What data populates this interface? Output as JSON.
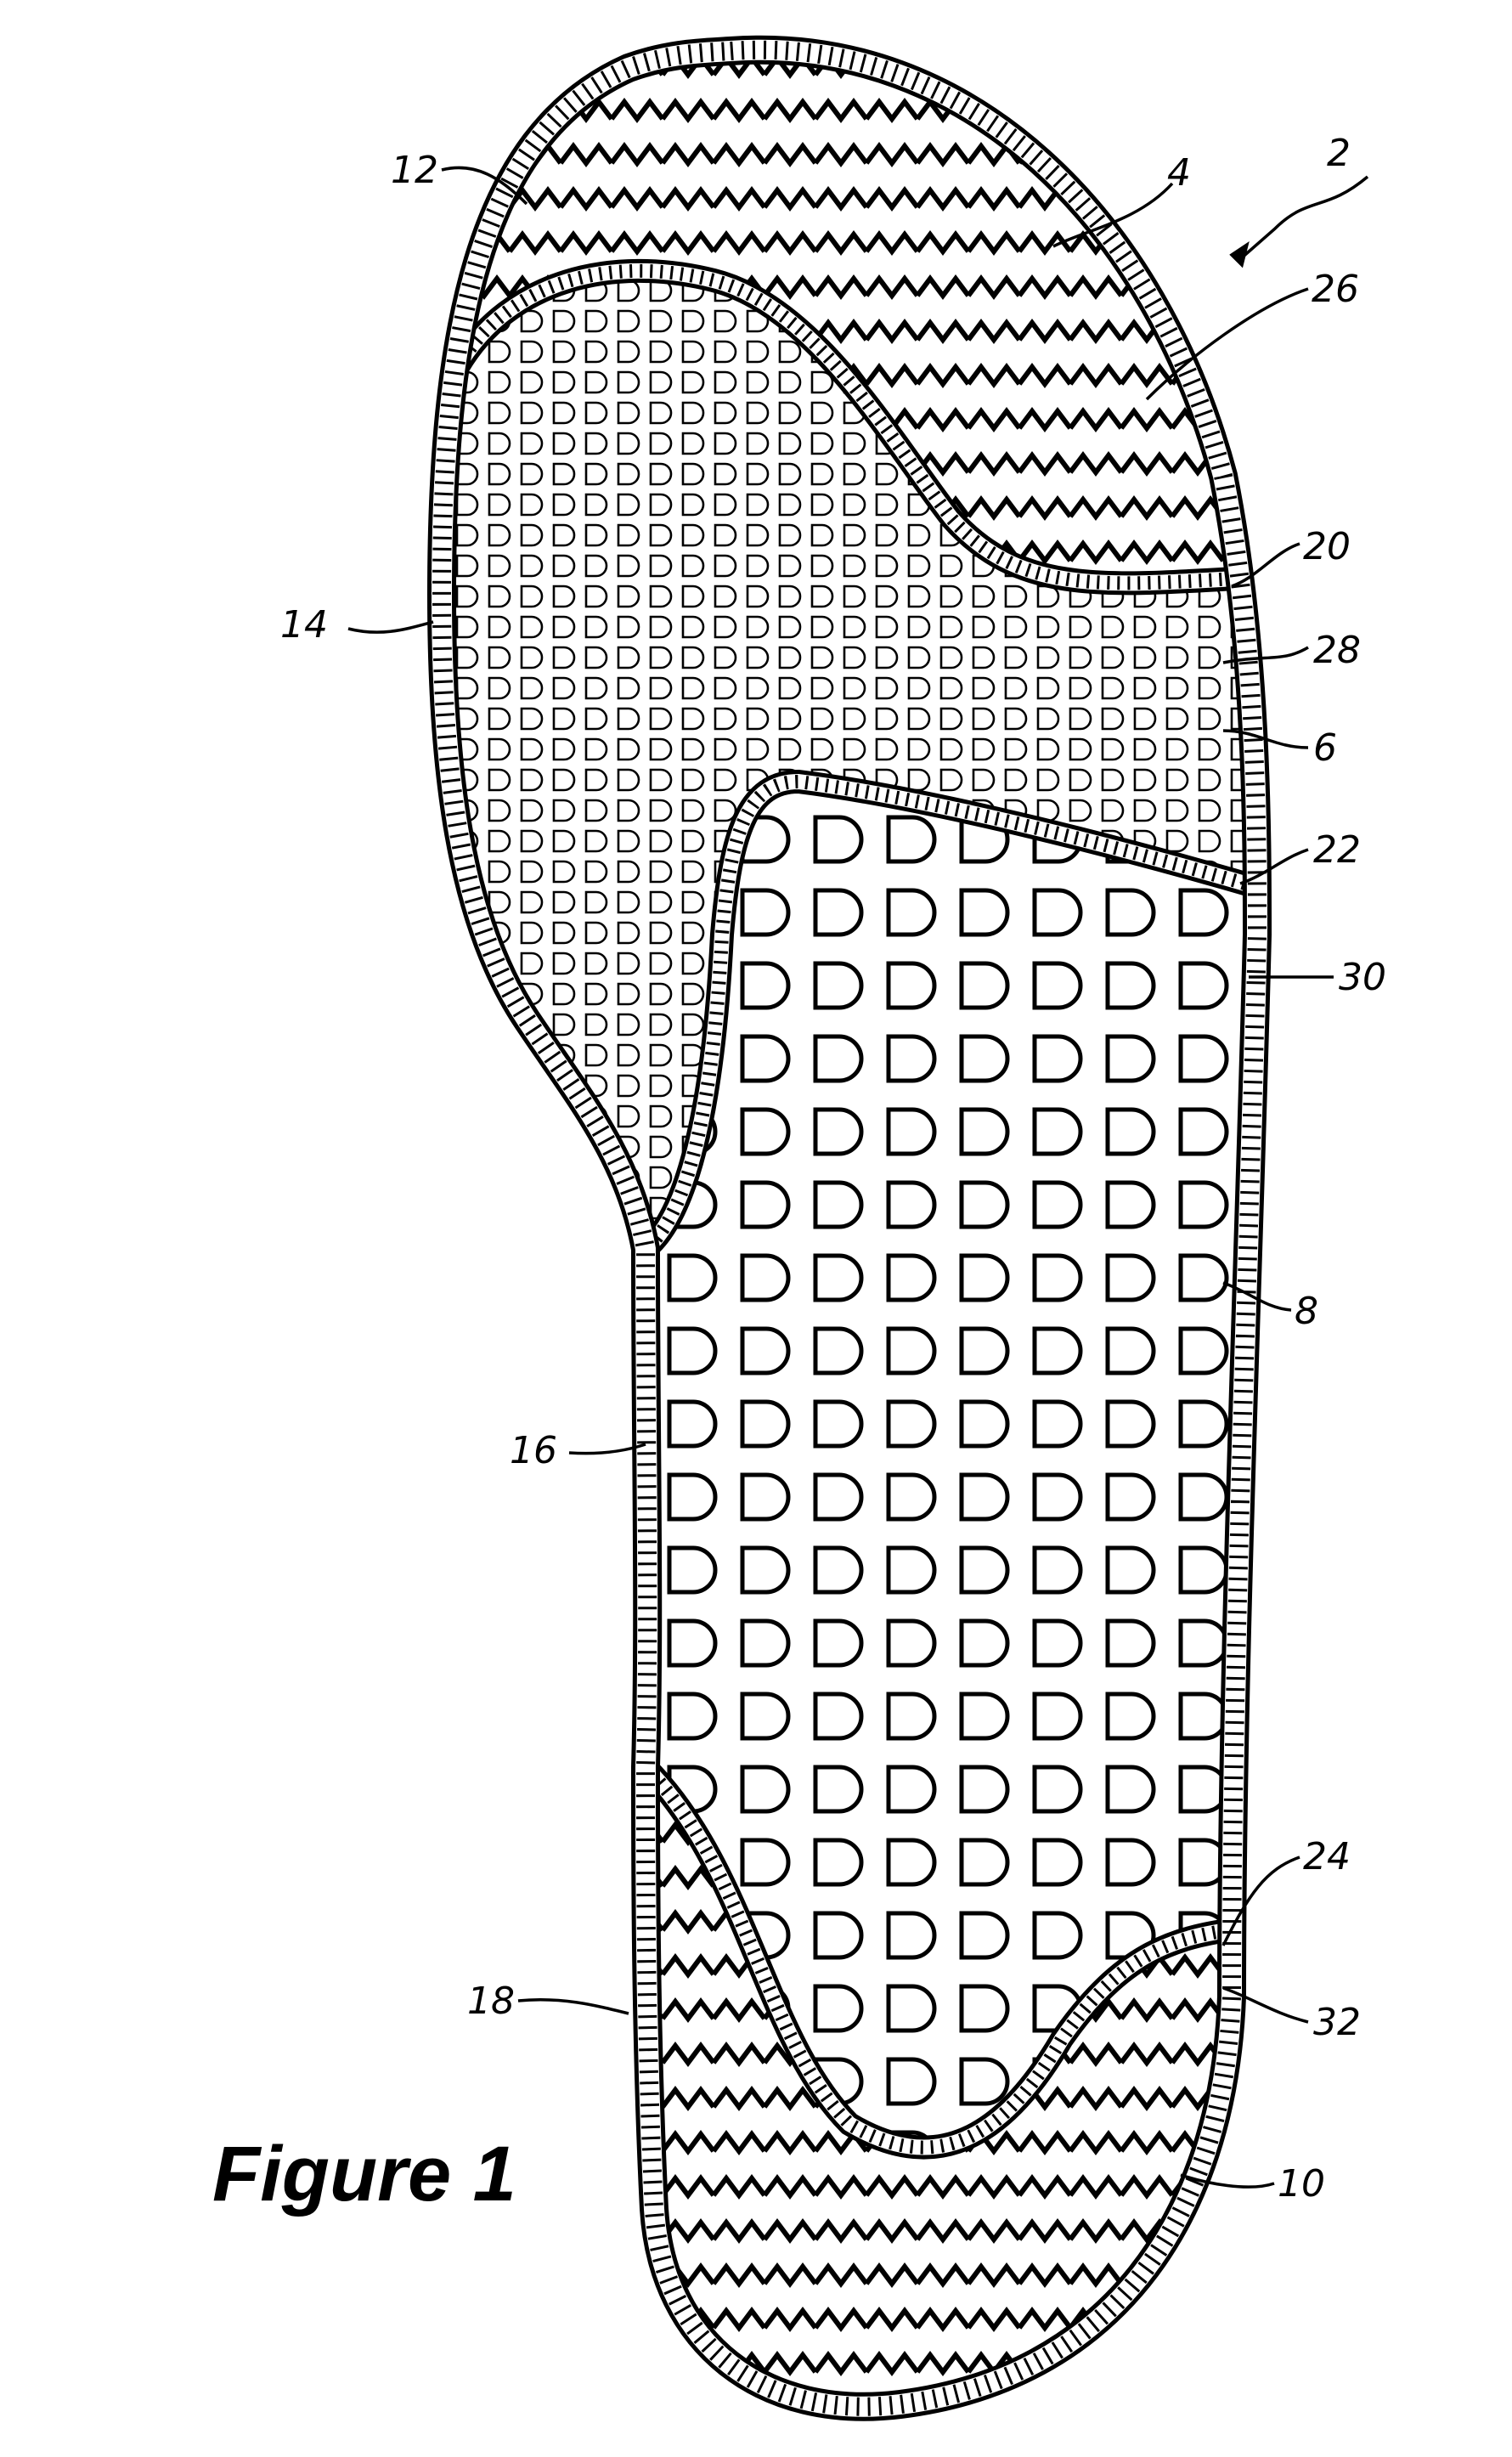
{
  "figure": {
    "title": "Figure 1"
  },
  "reference_labels": {
    "assembly": "2",
    "forefoot_region": "4",
    "midfoot_region": "6",
    "heel_cushion_region": "8",
    "heel_region": "10",
    "toe_edge": "12",
    "medial_forefoot_edge": "14",
    "arch_edge": "16",
    "heel_edge": "18",
    "boundary_forefoot_mid": "20",
    "boundary_mid_rear": "22",
    "boundary_heel": "24",
    "forefoot_pattern": "26",
    "midfoot_pattern": "28",
    "rearfoot_pattern": "30",
    "heel_pattern": "32"
  },
  "icons": {
    "zigzag_tread": "zigzag-pattern",
    "small_d_cells": "small-d-cell-pattern",
    "large_d_cells": "large-d-cell-pattern"
  },
  "colors": {
    "ink": "#000000",
    "paper": "#ffffff"
  }
}
